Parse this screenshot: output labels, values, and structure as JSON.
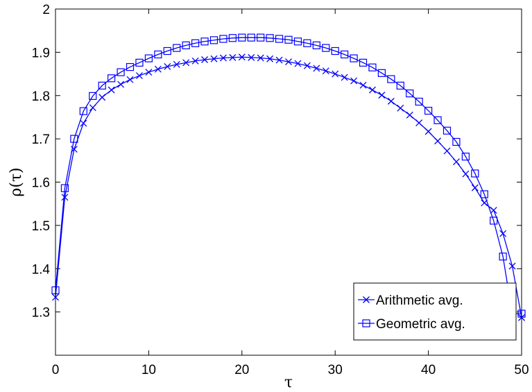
{
  "chart_data": {
    "type": "line",
    "title": "",
    "xlabel": "τ",
    "ylabel": "ρ(τ)",
    "xlim": [
      0,
      50
    ],
    "ylim": [
      1.2,
      2.0
    ],
    "xticks": [
      0,
      10,
      20,
      30,
      40,
      50
    ],
    "yticks": [
      1.3,
      1.4,
      1.5,
      1.6,
      1.7,
      1.8,
      1.9,
      2.0
    ],
    "xtick_labels": [
      "0",
      "10",
      "20",
      "30",
      "40",
      "50"
    ],
    "ytick_labels": [
      "1.3",
      "1.4",
      "1.5",
      "1.6",
      "1.7",
      "1.8",
      "1.9",
      "2"
    ],
    "grid": false,
    "legend_position": "bottom-right",
    "line_color": "#0000ff",
    "x": [
      0,
      1,
      2,
      3,
      4,
      5,
      6,
      7,
      8,
      9,
      10,
      11,
      12,
      13,
      14,
      15,
      16,
      17,
      18,
      19,
      20,
      21,
      22,
      23,
      24,
      25,
      26,
      27,
      28,
      29,
      30,
      31,
      32,
      33,
      34,
      35,
      36,
      37,
      38,
      39,
      40,
      41,
      42,
      43,
      44,
      45,
      46,
      47,
      48,
      49,
      50
    ],
    "series": [
      {
        "name": "Arithmetic avg.",
        "marker": "x",
        "values": [
          1.334,
          1.565,
          1.676,
          1.736,
          1.772,
          1.796,
          1.813,
          1.826,
          1.837,
          1.846,
          1.854,
          1.861,
          1.867,
          1.872,
          1.876,
          1.88,
          1.883,
          1.885,
          1.887,
          1.888,
          1.889,
          1.888,
          1.887,
          1.885,
          1.882,
          1.878,
          1.874,
          1.869,
          1.863,
          1.857,
          1.85,
          1.842,
          1.834,
          1.824,
          1.813,
          1.801,
          1.787,
          1.771,
          1.755,
          1.737,
          1.717,
          1.695,
          1.672,
          1.647,
          1.619,
          1.587,
          1.552,
          1.535,
          1.481,
          1.406,
          1.287
        ]
      },
      {
        "name": "Geometric avg.",
        "marker": "square",
        "values": [
          1.35,
          1.586,
          1.7,
          1.764,
          1.799,
          1.823,
          1.84,
          1.854,
          1.866,
          1.876,
          1.886,
          1.895,
          1.903,
          1.91,
          1.916,
          1.921,
          1.925,
          1.928,
          1.931,
          1.933,
          1.934,
          1.934,
          1.934,
          1.933,
          1.931,
          1.929,
          1.925,
          1.921,
          1.916,
          1.91,
          1.903,
          1.895,
          1.886,
          1.876,
          1.865,
          1.852,
          1.838,
          1.823,
          1.805,
          1.786,
          1.765,
          1.743,
          1.719,
          1.693,
          1.659,
          1.62,
          1.572,
          1.511,
          1.428,
          1.296,
          1.296
        ]
      }
    ]
  }
}
